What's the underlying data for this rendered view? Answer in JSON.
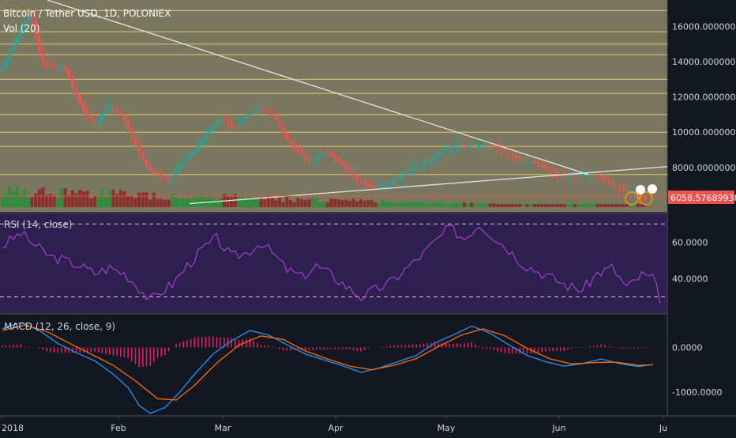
{
  "chart_data": [
    {
      "type": "candlestick",
      "title": "Bitcoin / Tether USD, 1D, POLONIEX",
      "volume_label": "Vol (20)",
      "x_ticks": [
        "2018",
        "Feb",
        "Mar",
        "Apr",
        "May",
        "Jun",
        "Ju"
      ],
      "y_ticks": [
        "16000.00000000",
        "14000.00000000",
        "12000.00000000",
        "10000.00000000",
        "8000.00000000"
      ],
      "ylim": [
        5750,
        17500
      ],
      "last_price": "6058.57689938",
      "horizontal_levels": [
        16900,
        15700,
        15000,
        14400,
        13000,
        12200,
        11000,
        10000,
        9200,
        7600
      ],
      "trendlines": [
        {
          "from": [
            "2018-01-05",
            17300
          ],
          "to": [
            "2018-06-08",
            7600
          ]
        },
        {
          "from": [
            "2018-03-01",
            5950
          ],
          "to": [
            "2018-07-07",
            8050
          ]
        }
      ],
      "price_path": [
        [
          0,
          13500
        ],
        [
          4,
          15200
        ],
        [
          8,
          16800
        ],
        [
          11,
          14000
        ],
        [
          14,
          13600
        ],
        [
          17,
          13800
        ],
        [
          20,
          12300
        ],
        [
          23,
          11000
        ],
        [
          26,
          10500
        ],
        [
          29,
          11500
        ],
        [
          33,
          10900
        ],
        [
          37,
          9000
        ],
        [
          40,
          7900
        ],
        [
          43,
          7600
        ],
        [
          46,
          7300
        ],
        [
          48,
          8100
        ],
        [
          52,
          8900
        ],
        [
          56,
          10000
        ],
        [
          60,
          10800
        ],
        [
          63,
          10300
        ],
        [
          67,
          11000
        ],
        [
          70,
          11400
        ],
        [
          74,
          10900
        ],
        [
          77,
          9700
        ],
        [
          80,
          9000
        ],
        [
          84,
          8400
        ],
        [
          88,
          8900
        ],
        [
          92,
          8300
        ],
        [
          96,
          7300
        ],
        [
          100,
          6900
        ],
        [
          104,
          7000
        ],
        [
          108,
          7500
        ],
        [
          112,
          8000
        ],
        [
          116,
          8400
        ],
        [
          120,
          9000
        ],
        [
          124,
          9300
        ],
        [
          128,
          9100
        ],
        [
          132,
          9400
        ],
        [
          136,
          8900
        ],
        [
          140,
          8500
        ],
        [
          144,
          8300
        ],
        [
          148,
          7900
        ],
        [
          152,
          7500
        ],
        [
          156,
          7600
        ],
        [
          160,
          7700
        ],
        [
          164,
          7200
        ],
        [
          168,
          6700
        ],
        [
          172,
          6600
        ],
        [
          174,
          6200
        ]
      ]
    },
    {
      "type": "line",
      "title": "RSI (14, close)",
      "y_ticks": [
        "60.0000",
        "40.0000"
      ],
      "ylim": [
        22,
        74
      ],
      "reference_lines": [
        70,
        30
      ],
      "series": [
        {
          "values": [
            [
              0,
              58
            ],
            [
              5,
              65
            ],
            [
              9,
              58
            ],
            [
              13,
              52
            ],
            [
              17,
              50
            ],
            [
              21,
              47
            ],
            [
              25,
              43
            ],
            [
              29,
              46
            ],
            [
              33,
              43
            ],
            [
              37,
              35
            ],
            [
              40,
              28
            ],
            [
              43,
              33
            ],
            [
              46,
              37
            ],
            [
              50,
              47
            ],
            [
              54,
              56
            ],
            [
              58,
              62
            ],
            [
              62,
              52
            ],
            [
              66,
              54
            ],
            [
              70,
              60
            ],
            [
              74,
              52
            ],
            [
              77,
              45
            ],
            [
              81,
              41
            ],
            [
              85,
              47
            ],
            [
              89,
              42
            ],
            [
              93,
              36
            ],
            [
              97,
              30
            ],
            [
              101,
              34
            ],
            [
              105,
              38
            ],
            [
              109,
              45
            ],
            [
              113,
              52
            ],
            [
              117,
              60
            ],
            [
              121,
              68
            ],
            [
              125,
              62
            ],
            [
              129,
              70
            ],
            [
              133,
              63
            ],
            [
              137,
              56
            ],
            [
              141,
              48
            ],
            [
              145,
              44
            ],
            [
              149,
              40
            ],
            [
              153,
              36
            ],
            [
              157,
              34
            ],
            [
              161,
              43
            ],
            [
              165,
              46
            ],
            [
              169,
              35
            ],
            [
              173,
              42
            ],
            [
              176,
              40
            ],
            [
              178,
              29
            ]
          ]
        }
      ]
    },
    {
      "type": "line",
      "title": "MACD (12, 26, close, 9)",
      "y_ticks": [
        "0.0000",
        "-1000.0000"
      ],
      "ylim": [
        -1500,
        700
      ],
      "series": [
        {
          "values": [
            [
              0,
              420
            ],
            [
              5,
              560
            ],
            [
              10,
              380
            ],
            [
              15,
              90
            ],
            [
              20,
              -120
            ],
            [
              25,
              -300
            ],
            [
              30,
              -600
            ],
            [
              34,
              -900
            ],
            [
              37,
              -1300
            ],
            [
              40,
              -1480
            ],
            [
              44,
              -1350
            ],
            [
              48,
              -1000
            ],
            [
              52,
              -600
            ],
            [
              57,
              -150
            ],
            [
              62,
              150
            ],
            [
              67,
              380
            ],
            [
              72,
              280
            ],
            [
              77,
              60
            ],
            [
              82,
              -150
            ],
            [
              87,
              -280
            ],
            [
              92,
              -410
            ],
            [
              97,
              -560
            ],
            [
              102,
              -460
            ],
            [
              107,
              -320
            ],
            [
              112,
              -180
            ],
            [
              117,
              100
            ],
            [
              122,
              280
            ],
            [
              127,
              480
            ],
            [
              132,
              320
            ],
            [
              137,
              60
            ],
            [
              142,
              -180
            ],
            [
              147,
              -320
            ],
            [
              152,
              -420
            ],
            [
              157,
              -360
            ],
            [
              162,
              -260
            ],
            [
              167,
              -360
            ],
            [
              172,
              -430
            ],
            [
              176,
              -380
            ]
          ]
        },
        {
          "values": [
            [
              0,
              380
            ],
            [
              6,
              500
            ],
            [
              12,
              360
            ],
            [
              18,
              100
            ],
            [
              24,
              -150
            ],
            [
              30,
              -400
            ],
            [
              36,
              -750
            ],
            [
              42,
              -1150
            ],
            [
              47,
              -1180
            ],
            [
              52,
              -850
            ],
            [
              58,
              -350
            ],
            [
              64,
              50
            ],
            [
              70,
              260
            ],
            [
              76,
              180
            ],
            [
              82,
              -80
            ],
            [
              88,
              -260
            ],
            [
              94,
              -420
            ],
            [
              100,
              -500
            ],
            [
              106,
              -400
            ],
            [
              112,
              -250
            ],
            [
              118,
              20
            ],
            [
              124,
              270
            ],
            [
              130,
              420
            ],
            [
              136,
              260
            ],
            [
              142,
              -20
            ],
            [
              148,
              -250
            ],
            [
              154,
              -370
            ],
            [
              160,
              -340
            ],
            [
              166,
              -330
            ],
            [
              172,
              -400
            ],
            [
              176,
              -390
            ]
          ]
        }
      ]
    }
  ],
  "colors": {
    "background": "#131722",
    "price_pane": "#7a7761",
    "rsi_pane": "#2d1f4e",
    "up": "#26a69a",
    "down": "#ef5350",
    "level_line": "#e8c36a",
    "rsi_line": "#a63fd1",
    "macd_line": "#2196f3",
    "signal_line": "#ff6d00",
    "histogram": "#e91e63",
    "axis_text": "#d1d4dc"
  }
}
